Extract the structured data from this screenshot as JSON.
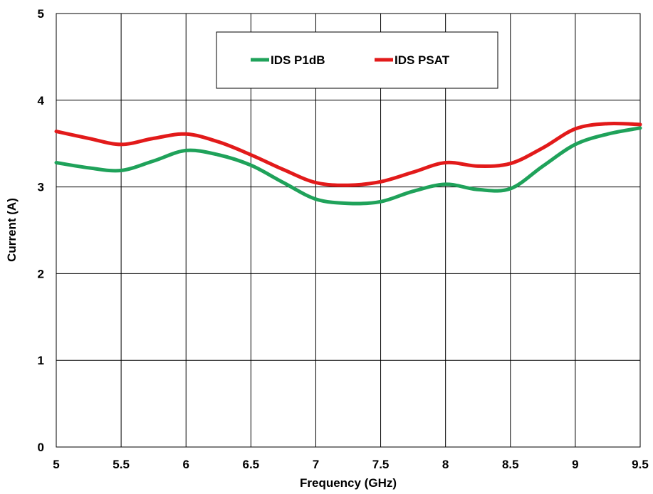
{
  "chart_data": {
    "type": "line",
    "title": "",
    "xlabel": "Frequency (GHz)",
    "ylabel": "Current (A)",
    "xlim": [
      5,
      9.5
    ],
    "ylim": [
      0,
      5
    ],
    "x_ticks": [
      "5",
      "5.5",
      "6",
      "6.5",
      "7",
      "7.5",
      "8",
      "8.5",
      "9",
      "9.5"
    ],
    "y_ticks": [
      "0",
      "1",
      "2",
      "3",
      "4",
      "5"
    ],
    "grid": true,
    "legend_position": "top-center",
    "series": [
      {
        "name": "IDS P1dB",
        "color": "#1fa25a",
        "x": [
          5,
          5.25,
          5.5,
          5.75,
          6,
          6.25,
          6.5,
          6.75,
          7,
          7.25,
          7.5,
          7.75,
          8,
          8.25,
          8.5,
          8.75,
          9,
          9.25,
          9.5
        ],
        "y": [
          3.28,
          3.22,
          3.19,
          3.3,
          3.42,
          3.37,
          3.25,
          3.05,
          2.86,
          2.81,
          2.83,
          2.95,
          3.03,
          2.97,
          2.98,
          3.24,
          3.49,
          3.61,
          3.68
        ]
      },
      {
        "name": "IDS PSAT",
        "color": "#e21a1a",
        "x": [
          5,
          5.25,
          5.5,
          5.75,
          6,
          6.25,
          6.5,
          6.75,
          7,
          7.25,
          7.5,
          7.75,
          8,
          8.25,
          8.5,
          8.75,
          9,
          9.25,
          9.5
        ],
        "y": [
          3.64,
          3.56,
          3.49,
          3.56,
          3.61,
          3.52,
          3.37,
          3.2,
          3.05,
          3.02,
          3.06,
          3.17,
          3.28,
          3.24,
          3.27,
          3.45,
          3.67,
          3.73,
          3.72
        ]
      }
    ]
  }
}
